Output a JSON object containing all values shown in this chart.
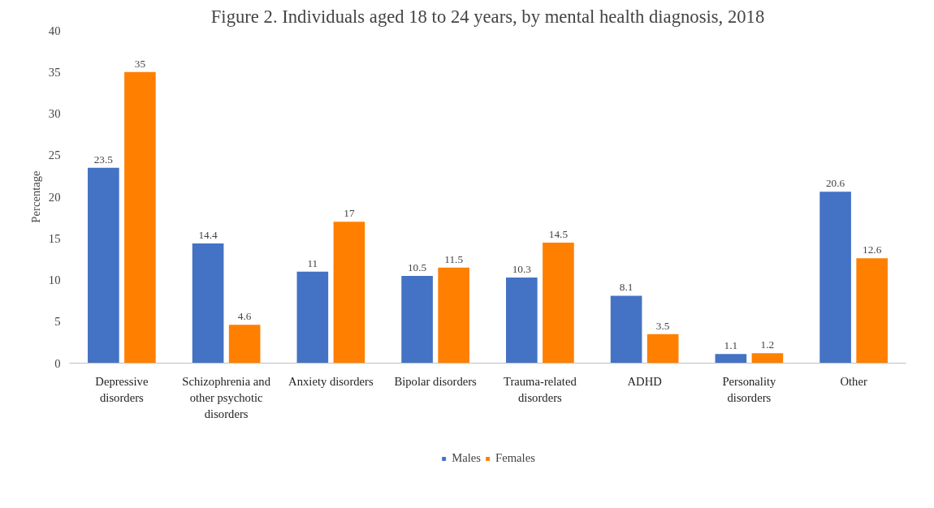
{
  "chart_data": {
    "type": "bar",
    "title": "Figure 2. Individuals aged 18 to 24 years, by mental health diagnosis, 2018",
    "ylabel": "Percentage",
    "categories": [
      "Depressive disorders",
      "Schizophrenia and other psychotic disorders",
      "Anxiety disorders",
      "Bipolar disorders",
      "Trauma-related disorders",
      "ADHD",
      "Personality disorders",
      "Other"
    ],
    "series": [
      {
        "name": "Males",
        "color": "#4472c4",
        "values": [
          23.5,
          14.4,
          11,
          10.5,
          10.3,
          8.1,
          1.1,
          20.6
        ]
      },
      {
        "name": "Females",
        "color": "#ff7f00",
        "values": [
          35,
          4.6,
          17,
          11.5,
          14.5,
          3.5,
          1.2,
          12.6
        ]
      }
    ],
    "ylim": [
      0,
      40
    ],
    "yticks": [
      0,
      5,
      10,
      15,
      20,
      25,
      30,
      35,
      40
    ],
    "data_labels": true,
    "grid": false,
    "legend": "bottom"
  }
}
